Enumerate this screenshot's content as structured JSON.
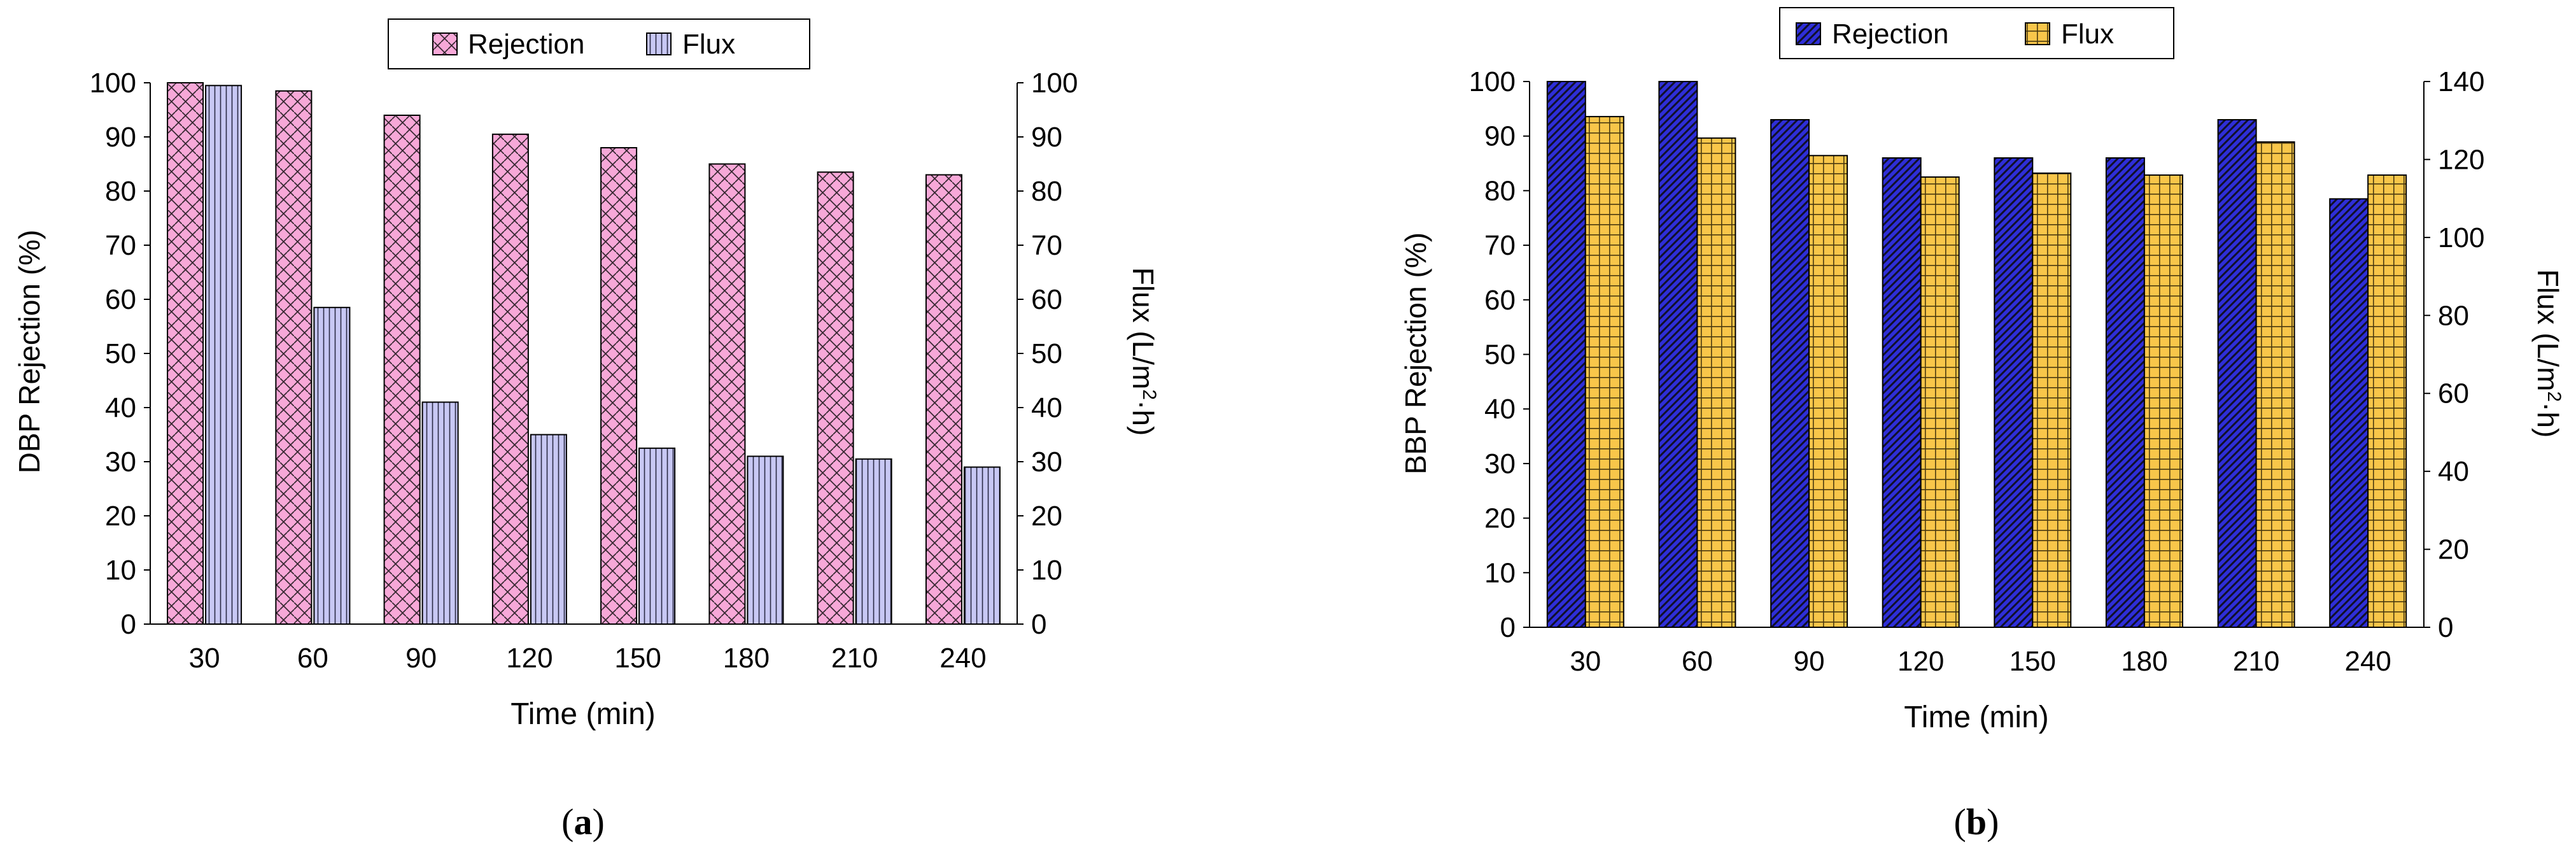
{
  "colors": {
    "rejection_a": "#f7a8d8",
    "flux_a": "#c8c8f4",
    "rejection_b": "#2e2ed8",
    "flux_b": "#f8c64a",
    "axis": "#000000"
  },
  "chart_data": [
    {
      "type": "bar",
      "panel_label": "(a)",
      "panel_letter": "a",
      "categories": [
        "30",
        "60",
        "90",
        "120",
        "150",
        "180",
        "210",
        "240"
      ],
      "series": [
        {
          "name": "Rejection",
          "axis": "left",
          "pattern": "brick",
          "values": [
            100,
            98.5,
            94,
            90.5,
            88,
            85,
            83.5,
            83
          ]
        },
        {
          "name": "Flux",
          "axis": "right",
          "pattern": "vertical",
          "values": [
            99.5,
            58.5,
            41,
            35,
            32.5,
            31,
            30.5,
            29
          ]
        }
      ],
      "xlabel": "Time (min)",
      "ylabel": "DBP Rejection (%)",
      "y2label_prefix": "Flux (L/m",
      "y2label_sup": "2",
      "y2label_suffix": "·h)",
      "ylim": [
        0,
        100
      ],
      "y2lim": [
        0,
        100
      ],
      "yticks": [
        0,
        10,
        20,
        30,
        40,
        50,
        60,
        70,
        80,
        90,
        100
      ],
      "y2ticks": [
        0,
        10,
        20,
        30,
        40,
        50,
        60,
        70,
        80,
        90,
        100
      ],
      "legend_position": "top-center",
      "grid": false
    },
    {
      "type": "bar",
      "panel_label": "(b)",
      "panel_letter": "b",
      "categories": [
        "30",
        "60",
        "90",
        "120",
        "150",
        "180",
        "210",
        "240"
      ],
      "series": [
        {
          "name": "Rejection",
          "axis": "left",
          "pattern": "diagonal",
          "values": [
            100,
            100,
            93,
            86,
            86,
            86,
            93,
            78.5
          ]
        },
        {
          "name": "Flux",
          "axis": "right",
          "pattern": "grid",
          "values": [
            131,
            125.5,
            121,
            115.5,
            116.5,
            116,
            124.5,
            116
          ]
        }
      ],
      "xlabel": "Time (min)",
      "ylabel": "BBP Rejection (%)",
      "y2label_prefix": "Flux (L/m",
      "y2label_sup": "2",
      "y2label_suffix": "·h)",
      "ylim": [
        0,
        100
      ],
      "y2lim": [
        0,
        140
      ],
      "yticks": [
        0,
        10,
        20,
        30,
        40,
        50,
        60,
        70,
        80,
        90,
        100
      ],
      "y2ticks": [
        0,
        20,
        40,
        60,
        80,
        100,
        120,
        140
      ],
      "legend_position": "top-center",
      "grid": false
    }
  ]
}
